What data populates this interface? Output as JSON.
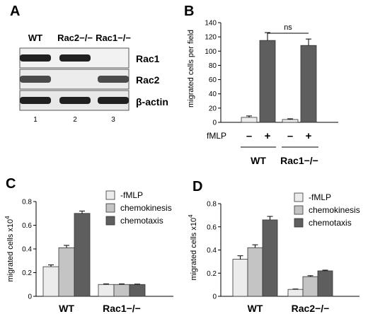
{
  "panels": {
    "a": {
      "letter": "A",
      "columns": [
        "WT",
        "Rac2−/−",
        "Rac1−/−"
      ],
      "lanes": [
        "1",
        "2",
        "3"
      ],
      "rows": [
        {
          "label": "Rac1",
          "bands": [
            1,
            1,
            0
          ]
        },
        {
          "label": "Rac2",
          "bands": [
            1,
            0,
            1
          ]
        },
        {
          "label": "β-actin",
          "bands": [
            1,
            1,
            1
          ]
        }
      ]
    },
    "b": {
      "letter": "B"
    },
    "c": {
      "letter": "C"
    },
    "d": {
      "letter": "D"
    }
  },
  "colors": {
    "light": "#ececec",
    "mid": "#c4c4c4",
    "dark": "#5e5e5e",
    "axis": "#000000"
  },
  "chart_data": [
    {
      "panel": "B",
      "type": "bar",
      "ylabel": "migrated cells per field",
      "ylim": [
        0,
        140
      ],
      "yticks": [
        0,
        20,
        40,
        60,
        80,
        100,
        120,
        140
      ],
      "treatment_label": "fMLP",
      "treatment_levels": [
        "–",
        "+",
        "–",
        "+"
      ],
      "groups": [
        "WT",
        "Rac1−/−"
      ],
      "bars": [
        {
          "group": "WT",
          "fmlp": "–",
          "value": 7,
          "error": 2,
          "color": "light"
        },
        {
          "group": "WT",
          "fmlp": "+",
          "value": 115,
          "error": 11,
          "color": "dark"
        },
        {
          "group": "Rac1−/−",
          "fmlp": "–",
          "value": 4,
          "error": 1,
          "color": "light"
        },
        {
          "group": "Rac1−/−",
          "fmlp": "+",
          "value": 108,
          "error": 9,
          "color": "dark"
        }
      ],
      "annotation": "ns"
    },
    {
      "panel": "C",
      "type": "bar",
      "ylabel": "migrated cells x10",
      "ylabel_sup": "4",
      "ylim": [
        0,
        0.8
      ],
      "yticks": [
        "0",
        "0.2",
        "0.4",
        "0.6",
        "0.8"
      ],
      "categories": [
        "WT",
        "Rac1−/−"
      ],
      "series": [
        {
          "name": "-fMLP",
          "values": [
            0.25,
            0.1
          ],
          "errors": [
            0.015,
            0.005
          ],
          "color": "light"
        },
        {
          "name": "chemokinesis",
          "values": [
            0.41,
            0.1
          ],
          "errors": [
            0.02,
            0.005
          ],
          "color": "mid"
        },
        {
          "name": "chemotaxis",
          "values": [
            0.7,
            0.1
          ],
          "errors": [
            0.02,
            0.003
          ],
          "color": "dark"
        }
      ]
    },
    {
      "panel": "D",
      "type": "bar",
      "ylabel": "migrated cells x10",
      "ylabel_sup": "4",
      "ylim": [
        0,
        0.8
      ],
      "yticks": [
        "0",
        "0.2",
        "0.4",
        "0.6",
        "0.8"
      ],
      "categories": [
        "WT",
        "Rac2−/−"
      ],
      "series": [
        {
          "name": "-fMLP",
          "values": [
            0.32,
            0.06
          ],
          "errors": [
            0.03,
            0.003
          ],
          "color": "light"
        },
        {
          "name": "chemokinesis",
          "values": [
            0.42,
            0.17
          ],
          "errors": [
            0.025,
            0.008
          ],
          "color": "mid"
        },
        {
          "name": "chemotaxis",
          "values": [
            0.66,
            0.22
          ],
          "errors": [
            0.03,
            0.006
          ],
          "color": "dark"
        }
      ]
    }
  ]
}
